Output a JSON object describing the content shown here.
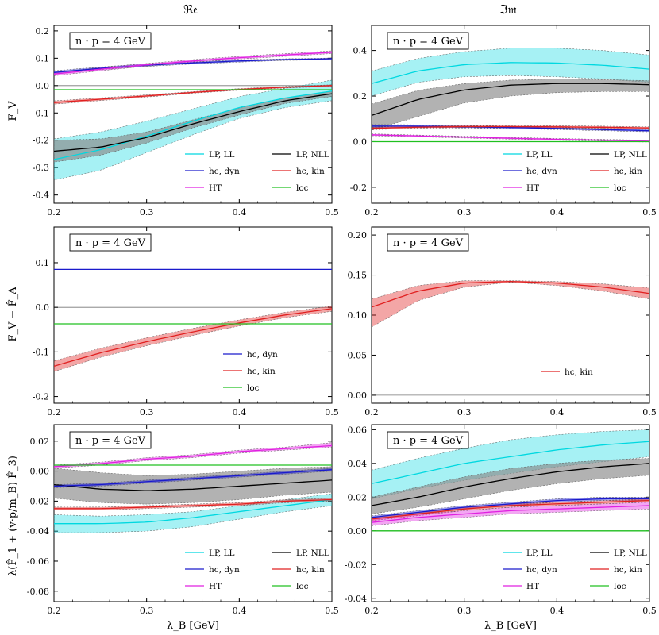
{
  "columns": {
    "left": "ℜ𝔢",
    "right": "ℑ𝔪"
  },
  "x_axis_label": "λ_B [GeV]",
  "row_ylabels": [
    "F_V",
    "F_V − F̂_A",
    "λ(F̂_1 + (v·p/m_B) F̂_3)"
  ],
  "colors": {
    "LP, LL": "#00d8e0",
    "LP, NLL": "#000000",
    "hc, dyn": "#1a1acc",
    "hc, kin": "#e02020",
    "HT": "#e020e0",
    "loc": "#20c020"
  },
  "chart_data": [
    {
      "id": "re-fv",
      "type": "line",
      "annotation": "n · p = 4 GeV",
      "xlim": [
        0.2,
        0.5
      ],
      "ylim": [
        -0.43,
        0.22
      ],
      "xticks": [
        0.2,
        0.3,
        0.4,
        0.5
      ],
      "yticks": [
        -0.4,
        -0.3,
        -0.2,
        -0.1,
        0.0,
        0.1,
        0.2
      ],
      "x": [
        0.2,
        0.25,
        0.3,
        0.35,
        0.4,
        0.45,
        0.5
      ],
      "legend": [
        "LP, LL",
        "LP, NLL",
        "hc, dyn",
        "hc, kin",
        "HT",
        "loc"
      ],
      "series": [
        {
          "name": "LP, LL",
          "values": [
            -0.27,
            -0.235,
            -0.185,
            -0.13,
            -0.08,
            -0.045,
            -0.02
          ],
          "upper": [
            -0.195,
            -0.17,
            -0.13,
            -0.085,
            -0.04,
            -0.01,
            0.02
          ],
          "lower": [
            -0.345,
            -0.31,
            -0.245,
            -0.18,
            -0.12,
            -0.08,
            -0.055
          ]
        },
        {
          "name": "LP, NLL",
          "values": [
            -0.24,
            -0.225,
            -0.19,
            -0.14,
            -0.095,
            -0.055,
            -0.03
          ],
          "upper": [
            -0.2,
            -0.195,
            -0.17,
            -0.125,
            -0.082,
            -0.045,
            -0.02
          ],
          "lower": [
            -0.28,
            -0.255,
            -0.21,
            -0.155,
            -0.108,
            -0.065,
            -0.04
          ]
        },
        {
          "name": "hc, dyn",
          "values": [
            0.048,
            0.063,
            0.075,
            0.083,
            0.09,
            0.095,
            0.098
          ],
          "upper": [
            0.054,
            0.068,
            0.08,
            0.087,
            0.094,
            0.098,
            0.101
          ],
          "lower": [
            0.042,
            0.058,
            0.07,
            0.079,
            0.086,
            0.092,
            0.095
          ]
        },
        {
          "name": "hc, kin",
          "values": [
            -0.062,
            -0.05,
            -0.038,
            -0.025,
            -0.014,
            -0.006,
            0.0
          ],
          "upper": [
            -0.056,
            -0.045,
            -0.034,
            -0.022,
            -0.011,
            -0.003,
            0.003
          ],
          "lower": [
            -0.068,
            -0.055,
            -0.042,
            -0.028,
            -0.017,
            -0.009,
            -0.003
          ]
        },
        {
          "name": "HT",
          "values": [
            0.042,
            0.06,
            0.076,
            0.09,
            0.102,
            0.112,
            0.122
          ],
          "upper": [
            0.048,
            0.066,
            0.081,
            0.095,
            0.107,
            0.117,
            0.127
          ],
          "lower": [
            0.036,
            0.054,
            0.071,
            0.085,
            0.097,
            0.107,
            0.117
          ]
        },
        {
          "name": "loc",
          "values": [
            -0.015,
            -0.015,
            -0.015,
            -0.015,
            -0.015,
            -0.015,
            -0.015
          ]
        }
      ]
    },
    {
      "id": "im-fv",
      "type": "line",
      "annotation": "n · p = 4 GeV",
      "xlim": [
        0.2,
        0.5
      ],
      "ylim": [
        -0.27,
        0.51
      ],
      "xticks": [
        0.2,
        0.3,
        0.4,
        0.5
      ],
      "yticks": [
        -0.2,
        0.0,
        0.2,
        0.4
      ],
      "x": [
        0.2,
        0.25,
        0.3,
        0.35,
        0.4,
        0.45,
        0.5
      ],
      "legend": [
        "LP, LL",
        "LP, NLL",
        "hc, dyn",
        "hc, kin",
        "HT",
        "loc"
      ],
      "series": [
        {
          "name": "LP, LL",
          "values": [
            0.255,
            0.31,
            0.338,
            0.347,
            0.345,
            0.335,
            0.318
          ],
          "upper": [
            0.31,
            0.365,
            0.395,
            0.41,
            0.41,
            0.4,
            0.38
          ],
          "lower": [
            0.2,
            0.26,
            0.285,
            0.29,
            0.285,
            0.275,
            0.26
          ]
        },
        {
          "name": "LP, NLL",
          "values": [
            0.115,
            0.185,
            0.227,
            0.248,
            0.255,
            0.255,
            0.25
          ],
          "upper": [
            0.165,
            0.225,
            0.255,
            0.27,
            0.275,
            0.272,
            0.268
          ],
          "lower": [
            0.05,
            0.11,
            0.17,
            0.2,
            0.215,
            0.22,
            0.22
          ]
        },
        {
          "name": "hc, dyn",
          "values": [
            0.068,
            0.068,
            0.065,
            0.062,
            0.058,
            0.053,
            0.048
          ],
          "upper": [
            0.075,
            0.074,
            0.07,
            0.067,
            0.063,
            0.058,
            0.053
          ],
          "lower": [
            0.061,
            0.062,
            0.06,
            0.057,
            0.053,
            0.048,
            0.043
          ]
        },
        {
          "name": "hc, kin",
          "values": [
            0.058,
            0.064,
            0.066,
            0.066,
            0.065,
            0.063,
            0.06
          ],
          "upper": [
            0.064,
            0.069,
            0.071,
            0.071,
            0.07,
            0.068,
            0.065
          ],
          "lower": [
            0.052,
            0.059,
            0.061,
            0.061,
            0.06,
            0.058,
            0.055
          ]
        },
        {
          "name": "HT",
          "values": [
            0.03,
            0.025,
            0.02,
            0.015,
            0.01,
            0.006,
            0.002
          ],
          "upper": [
            0.034,
            0.029,
            0.024,
            0.019,
            0.014,
            0.01,
            0.006
          ],
          "lower": [
            0.026,
            0.021,
            0.016,
            0.011,
            0.006,
            0.002,
            -0.002
          ]
        },
        {
          "name": "loc",
          "values": [
            0.0,
            0.0,
            0.0,
            0.0,
            0.0,
            0.0,
            0.0
          ]
        }
      ]
    },
    {
      "id": "re-diff",
      "type": "line",
      "annotation": "n · p = 4 GeV",
      "xlim": [
        0.2,
        0.5
      ],
      "ylim": [
        -0.215,
        0.18
      ],
      "xticks": [
        0.2,
        0.3,
        0.4,
        0.5
      ],
      "yticks": [
        -0.2,
        -0.1,
        0.0,
        0.1
      ],
      "x": [
        0.2,
        0.25,
        0.3,
        0.35,
        0.4,
        0.45,
        0.5
      ],
      "legend": [
        "hc, dyn",
        "hc, kin",
        "loc"
      ],
      "series": [
        {
          "name": "hc, dyn",
          "values": [
            0.085,
            0.085,
            0.085,
            0.085,
            0.085,
            0.085,
            0.085
          ]
        },
        {
          "name": "hc, kin",
          "values": [
            -0.132,
            -0.102,
            -0.077,
            -0.055,
            -0.035,
            -0.017,
            -0.003
          ],
          "upper": [
            -0.12,
            -0.092,
            -0.068,
            -0.047,
            -0.028,
            -0.011,
            0.003
          ],
          "lower": [
            -0.144,
            -0.112,
            -0.086,
            -0.063,
            -0.042,
            -0.023,
            -0.009
          ]
        },
        {
          "name": "loc",
          "values": [
            -0.037,
            -0.037,
            -0.037,
            -0.037,
            -0.037,
            -0.037,
            -0.037
          ]
        }
      ]
    },
    {
      "id": "im-diff",
      "type": "line",
      "annotation": "n · p = 4 GeV",
      "xlim": [
        0.2,
        0.5
      ],
      "ylim": [
        -0.01,
        0.21
      ],
      "xticks": [
        0.2,
        0.3,
        0.4,
        0.5
      ],
      "yticks": [
        0.0,
        0.05,
        0.1,
        0.15,
        0.2
      ],
      "x": [
        0.2,
        0.25,
        0.3,
        0.35,
        0.4,
        0.45,
        0.5
      ],
      "legend": [
        "hc, kin"
      ],
      "series": [
        {
          "name": "hc, kin",
          "values": [
            0.11,
            0.13,
            0.14,
            0.142,
            0.14,
            0.135,
            0.127
          ],
          "upper": [
            0.12,
            0.137,
            0.143,
            0.143,
            0.142,
            0.139,
            0.134
          ],
          "lower": [
            0.085,
            0.118,
            0.135,
            0.141,
            0.137,
            0.13,
            0.12
          ]
        }
      ]
    },
    {
      "id": "re-lambda",
      "type": "line",
      "annotation": "n · p = 4 GeV",
      "xlim": [
        0.2,
        0.5
      ],
      "ylim": [
        -0.087,
        0.031
      ],
      "xticks": [
        0.2,
        0.3,
        0.4,
        0.5
      ],
      "yticks": [
        -0.08,
        -0.06,
        -0.04,
        -0.02,
        0.0,
        0.02
      ],
      "x": [
        0.2,
        0.25,
        0.3,
        0.35,
        0.4,
        0.45,
        0.5
      ],
      "legend": [
        "LP, LL",
        "LP, NLL",
        "hc, dyn",
        "hc, kin",
        "HT",
        "loc"
      ],
      "series": [
        {
          "name": "LP, LL",
          "values": [
            -0.035,
            -0.035,
            -0.034,
            -0.031,
            -0.027,
            -0.023,
            -0.019
          ],
          "upper": [
            -0.029,
            -0.03,
            -0.029,
            -0.027,
            -0.023,
            -0.019,
            -0.015
          ],
          "lower": [
            -0.041,
            -0.041,
            -0.04,
            -0.037,
            -0.032,
            -0.027,
            -0.023
          ]
        },
        {
          "name": "LP, NLL",
          "values": [
            -0.009,
            -0.012,
            -0.013,
            -0.012,
            -0.01,
            -0.008,
            -0.006
          ],
          "upper": [
            0.002,
            -0.001,
            -0.003,
            -0.002,
            0.0,
            0.002,
            0.003
          ],
          "lower": [
            -0.018,
            -0.021,
            -0.022,
            -0.021,
            -0.019,
            -0.016,
            -0.014
          ]
        },
        {
          "name": "hc, dyn",
          "values": [
            -0.01,
            -0.009,
            -0.007,
            -0.005,
            -0.003,
            -0.001,
            0.001
          ],
          "upper": [
            -0.009,
            -0.008,
            -0.006,
            -0.004,
            -0.002,
            0.0,
            0.002
          ],
          "lower": [
            -0.011,
            -0.01,
            -0.008,
            -0.006,
            -0.004,
            -0.002,
            0.0
          ]
        },
        {
          "name": "hc, kin",
          "values": [
            -0.025,
            -0.025,
            -0.024,
            -0.023,
            -0.022,
            -0.02,
            -0.019
          ],
          "upper": [
            -0.024,
            -0.024,
            -0.023,
            -0.022,
            -0.021,
            -0.019,
            -0.018
          ],
          "lower": [
            -0.026,
            -0.026,
            -0.025,
            -0.024,
            -0.023,
            -0.021,
            -0.02
          ]
        },
        {
          "name": "HT",
          "values": [
            0.003,
            0.005,
            0.008,
            0.01,
            0.013,
            0.015,
            0.017
          ],
          "upper": [
            0.004,
            0.006,
            0.009,
            0.011,
            0.014,
            0.016,
            0.019
          ],
          "lower": [
            0.002,
            0.004,
            0.007,
            0.009,
            0.012,
            0.014,
            0.016
          ]
        },
        {
          "name": "loc",
          "values": [
            0.004,
            0.004,
            0.004,
            0.004,
            0.004,
            0.004,
            0.004
          ]
        }
      ]
    },
    {
      "id": "im-lambda",
      "type": "line",
      "annotation": "n · p = 4 GeV",
      "xlim": [
        0.2,
        0.5
      ],
      "ylim": [
        -0.042,
        0.063
      ],
      "xticks": [
        0.2,
        0.3,
        0.4,
        0.5
      ],
      "yticks": [
        -0.04,
        -0.02,
        0.0,
        0.02,
        0.04,
        0.06
      ],
      "x": [
        0.2,
        0.25,
        0.3,
        0.35,
        0.4,
        0.45,
        0.5
      ],
      "legend": [
        "LP, LL",
        "LP, NLL",
        "hc, dyn",
        "hc, kin",
        "HT",
        "loc"
      ],
      "series": [
        {
          "name": "LP, LL",
          "values": [
            0.028,
            0.034,
            0.04,
            0.044,
            0.048,
            0.051,
            0.053
          ],
          "upper": [
            0.036,
            0.043,
            0.049,
            0.054,
            0.057,
            0.059,
            0.06
          ],
          "lower": [
            0.019,
            0.025,
            0.03,
            0.034,
            0.038,
            0.041,
            0.044
          ]
        },
        {
          "name": "LP, NLL",
          "values": [
            0.015,
            0.02,
            0.026,
            0.031,
            0.035,
            0.038,
            0.04
          ],
          "upper": [
            0.02,
            0.026,
            0.032,
            0.037,
            0.04,
            0.042,
            0.043
          ],
          "lower": [
            0.01,
            0.014,
            0.019,
            0.024,
            0.028,
            0.031,
            0.033
          ]
        },
        {
          "name": "hc, dyn",
          "values": [
            0.008,
            0.011,
            0.014,
            0.016,
            0.018,
            0.019,
            0.019
          ],
          "upper": [
            0.009,
            0.012,
            0.015,
            0.017,
            0.019,
            0.02,
            0.02
          ],
          "lower": [
            0.007,
            0.01,
            0.013,
            0.015,
            0.017,
            0.018,
            0.018
          ]
        },
        {
          "name": "hc, kin",
          "values": [
            0.007,
            0.01,
            0.013,
            0.015,
            0.016,
            0.017,
            0.018
          ],
          "upper": [
            0.008,
            0.011,
            0.014,
            0.016,
            0.017,
            0.018,
            0.019
          ],
          "lower": [
            0.006,
            0.009,
            0.012,
            0.014,
            0.015,
            0.016,
            0.017
          ]
        },
        {
          "name": "HT",
          "values": [
            0.005,
            0.008,
            0.01,
            0.012,
            0.013,
            0.014,
            0.015
          ],
          "upper": [
            0.007,
            0.01,
            0.012,
            0.014,
            0.015,
            0.016,
            0.017
          ],
          "lower": [
            0.003,
            0.006,
            0.008,
            0.01,
            0.011,
            0.012,
            0.013
          ]
        },
        {
          "name": "loc",
          "values": [
            0.0,
            0.0,
            0.0,
            0.0,
            0.0,
            0.0,
            0.0
          ]
        }
      ]
    }
  ]
}
